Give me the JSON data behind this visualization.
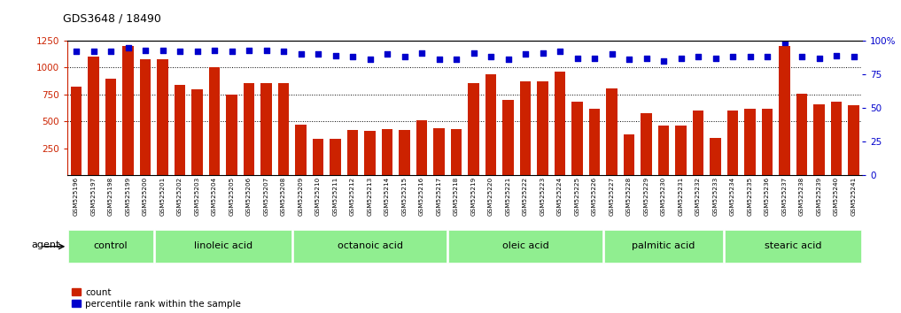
{
  "title": "GDS3648 / 18490",
  "samples": [
    "GSM525196",
    "GSM525197",
    "GSM525198",
    "GSM525199",
    "GSM525200",
    "GSM525201",
    "GSM525202",
    "GSM525203",
    "GSM525204",
    "GSM525205",
    "GSM525206",
    "GSM525207",
    "GSM525208",
    "GSM525209",
    "GSM525210",
    "GSM525211",
    "GSM525212",
    "GSM525213",
    "GSM525214",
    "GSM525215",
    "GSM525216",
    "GSM525217",
    "GSM525218",
    "GSM525219",
    "GSM525220",
    "GSM525221",
    "GSM525222",
    "GSM525223",
    "GSM525224",
    "GSM525225",
    "GSM525226",
    "GSM525227",
    "GSM525228",
    "GSM525229",
    "GSM525230",
    "GSM525231",
    "GSM525232",
    "GSM525233",
    "GSM525234",
    "GSM525235",
    "GSM525236",
    "GSM525237",
    "GSM525238",
    "GSM525239",
    "GSM525240",
    "GSM525241"
  ],
  "counts": [
    820,
    1100,
    900,
    1200,
    1080,
    1080,
    840,
    800,
    1000,
    750,
    860,
    860,
    860,
    470,
    340,
    340,
    420,
    410,
    430,
    420,
    510,
    440,
    430,
    860,
    940,
    700,
    875,
    875,
    960,
    680,
    620,
    810,
    380,
    580,
    460,
    460,
    600,
    350,
    600,
    620,
    620,
    1200,
    760,
    660,
    680,
    650
  ],
  "percentile_ranks": [
    92,
    92,
    92,
    95,
    93,
    93,
    92,
    92,
    93,
    92,
    93,
    93,
    92,
    90,
    90,
    89,
    88,
    86,
    90,
    88,
    91,
    86,
    86,
    91,
    88,
    86,
    90,
    91,
    92,
    87,
    87,
    90,
    86,
    87,
    85,
    87,
    88,
    87,
    88,
    88,
    88,
    99,
    88,
    87,
    89,
    88
  ],
  "groups": [
    {
      "label": "control",
      "start": 0,
      "end": 5
    },
    {
      "label": "linoleic acid",
      "start": 5,
      "end": 13
    },
    {
      "label": "octanoic acid",
      "start": 13,
      "end": 22
    },
    {
      "label": "oleic acid",
      "start": 22,
      "end": 31
    },
    {
      "label": "palmitic acid",
      "start": 31,
      "end": 38
    },
    {
      "label": "stearic acid",
      "start": 38,
      "end": 46
    }
  ],
  "bar_color": "#cc2200",
  "dot_color": "#0000cc",
  "left_ylim": [
    0,
    1250
  ],
  "right_ylim": [
    0,
    100
  ],
  "left_yticks": [
    250,
    500,
    750,
    1000,
    1250
  ],
  "right_yticks": [
    0,
    25,
    50,
    75,
    100
  ],
  "grid_lines": [
    500,
    750,
    1000
  ],
  "plot_bg": "#ffffff",
  "group_fill": "#90ee90",
  "bar_width": 0.65
}
